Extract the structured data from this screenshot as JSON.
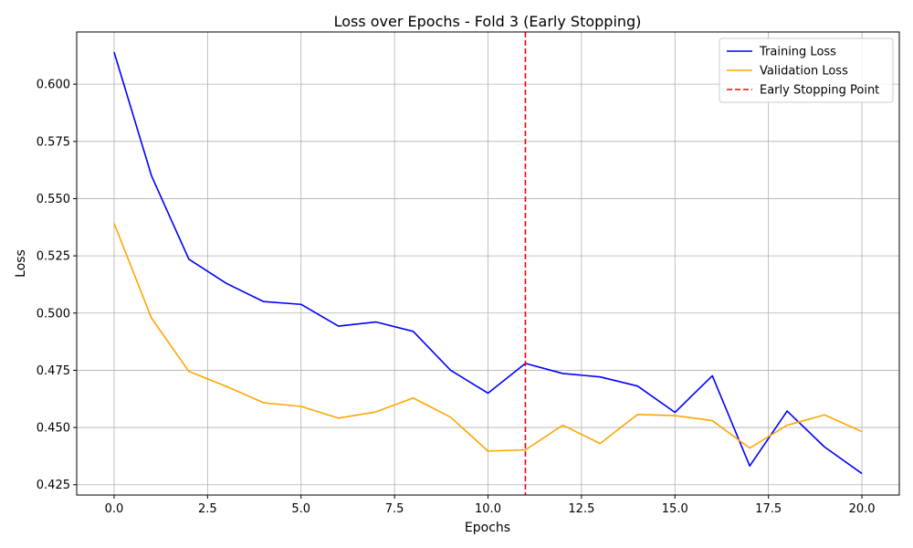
{
  "chart_data": {
    "type": "line",
    "title": "Loss over Epochs - Fold 3 (Early Stopping)",
    "xlabel": "Epochs",
    "ylabel": "Loss",
    "xlim": [
      -1,
      21
    ],
    "ylim": [
      0.4205,
      0.6228
    ],
    "xticks": [
      0.0,
      2.5,
      5.0,
      7.5,
      10.0,
      12.5,
      15.0,
      17.5,
      20.0
    ],
    "xtick_labels": [
      "0.0",
      "2.5",
      "5.0",
      "7.5",
      "10.0",
      "12.5",
      "15.0",
      "17.5",
      "20.0"
    ],
    "yticks": [
      0.425,
      0.45,
      0.475,
      0.5,
      0.525,
      0.55,
      0.575,
      0.6
    ],
    "ytick_labels": [
      "0.425",
      "0.450",
      "0.475",
      "0.500",
      "0.525",
      "0.550",
      "0.575",
      "0.600"
    ],
    "grid": true,
    "legend_position": "top-right",
    "x": [
      0,
      1,
      2,
      3,
      4,
      5,
      6,
      7,
      8,
      9,
      10,
      11,
      12,
      13,
      14,
      15,
      16,
      17,
      18,
      19,
      20
    ],
    "series": [
      {
        "name": "Training Loss",
        "color": "#0000ff",
        "values": [
          0.614,
          0.56,
          0.5235,
          0.513,
          0.505,
          0.5038,
          0.4943,
          0.4961,
          0.492,
          0.475,
          0.465,
          0.478,
          0.4736,
          0.4721,
          0.4681,
          0.4566,
          0.4726,
          0.4332,
          0.4572,
          0.4415,
          0.4299
        ]
      },
      {
        "name": "Validation Loss",
        "color": "#ffa500",
        "values": [
          0.5392,
          0.4978,
          0.4745,
          0.468,
          0.4608,
          0.4592,
          0.4541,
          0.4568,
          0.4629,
          0.4545,
          0.4397,
          0.4402,
          0.451,
          0.443,
          0.4557,
          0.4552,
          0.453,
          0.441,
          0.451,
          0.4555,
          0.4482
        ]
      }
    ],
    "vline": {
      "name": "Early Stopping Point",
      "x": 11,
      "color": "#ff0000"
    }
  }
}
